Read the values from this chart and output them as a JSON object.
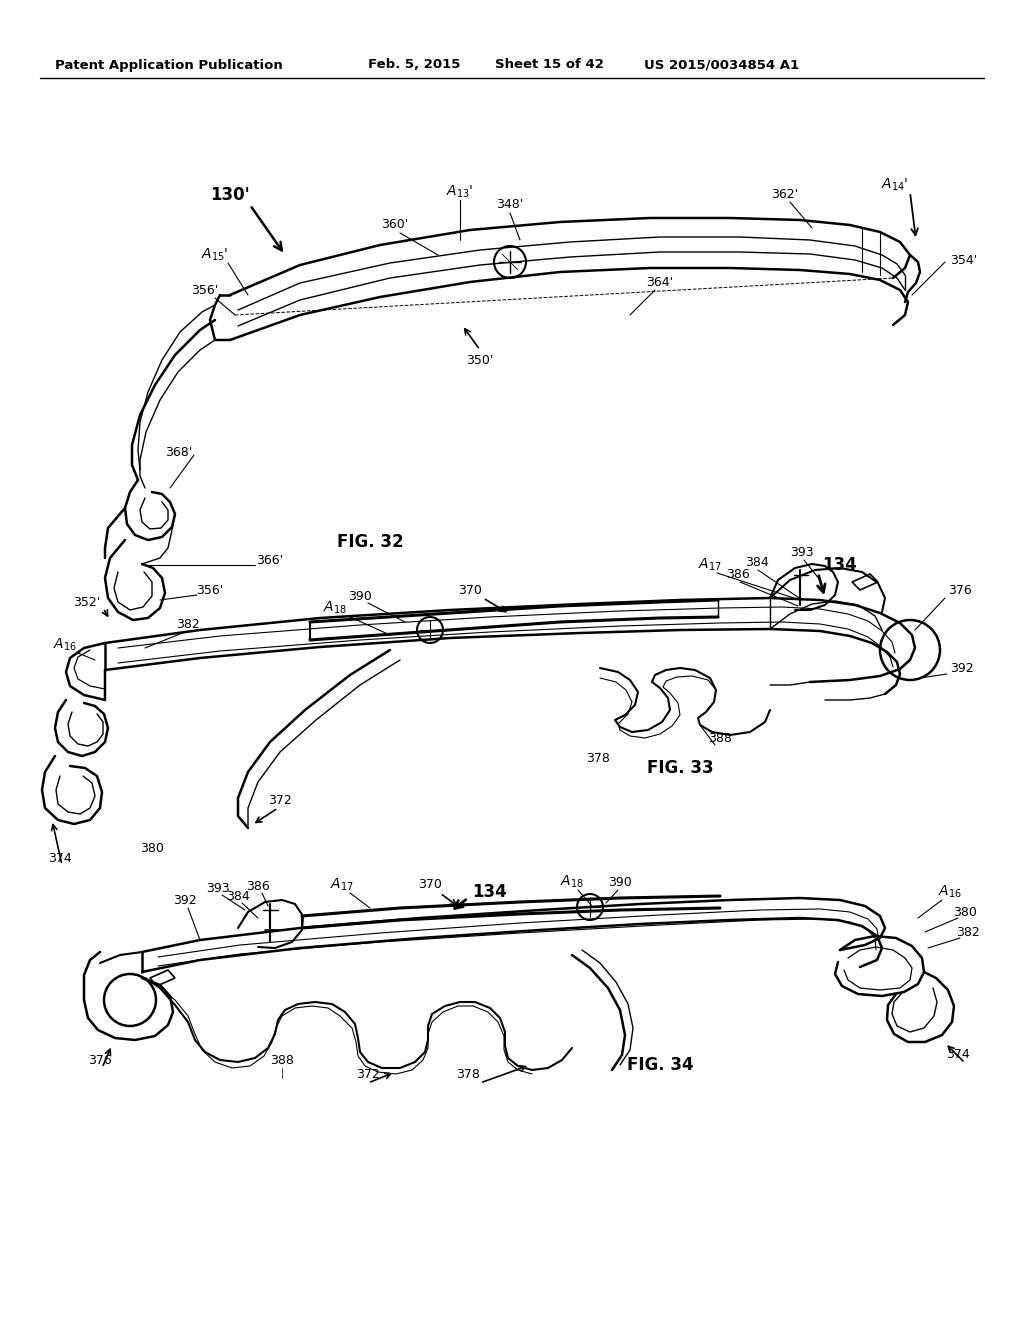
{
  "bg_color": "#ffffff",
  "header_text": "Patent Application Publication",
  "header_date": "Feb. 5, 2015",
  "header_sheet": "Sheet 15 of 42",
  "header_patent": "US 2015/0034854 A1",
  "fig32_label": "FIG. 32",
  "fig33_label": "FIG. 33",
  "fig34_label": "FIG. 34"
}
